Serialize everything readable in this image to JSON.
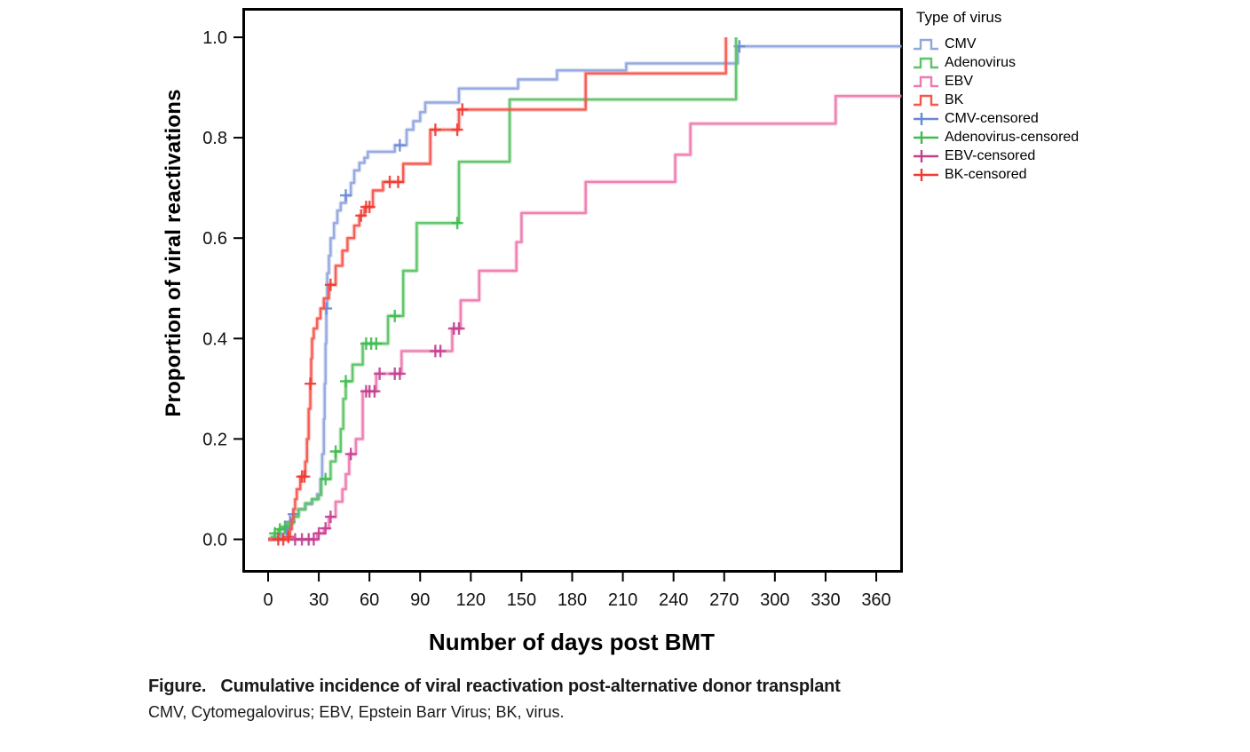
{
  "figure": {
    "y_axis_title": "Proportion of viral reactivations",
    "x_axis_title": "Number of days post BMT",
    "caption_line1": "Figure.   Cumulative incidence of viral reactivation post-alternative donor transplant",
    "caption_line2": "CMV, Cytomegalovirus; EBV, Epstein Barr Virus; BK, virus."
  },
  "legend": {
    "title": "Type of virus",
    "items": [
      {
        "label": "CMV",
        "type": "line",
        "color": "#91a7de"
      },
      {
        "label": "Adenovirus",
        "type": "line",
        "color": "#5dc466"
      },
      {
        "label": "EBV",
        "type": "line",
        "color": "#ed7bb0"
      },
      {
        "label": "BK",
        "type": "line",
        "color": "#f4574e"
      },
      {
        "label": "CMV-censored",
        "type": "censored",
        "color": "#6887d6"
      },
      {
        "label": "Adenovirus-censored",
        "type": "censored",
        "color": "#3fbb4e"
      },
      {
        "label": "EBV-censored",
        "type": "censored",
        "color": "#c13e90"
      },
      {
        "label": "BK-censored",
        "type": "censored",
        "color": "#ee3a32"
      }
    ]
  },
  "chart_data": {
    "type": "line",
    "subtype": "kaplan-meier-cumulative-incidence-steps",
    "title": "Cumulative incidence of viral reactivation post-alternative donor transplant",
    "xlabel": "Number of days post BMT",
    "ylabel": "Proportion of viral reactivations",
    "xlim": [
      -15,
      375
    ],
    "ylim": [
      -0.06,
      1.06
    ],
    "x_ticks": [
      0,
      30,
      60,
      90,
      120,
      150,
      180,
      210,
      240,
      270,
      300,
      330,
      360
    ],
    "y_ticks": [
      0.0,
      0.2,
      0.4,
      0.6,
      0.8,
      1.0
    ],
    "grid": false,
    "legend_position": "right",
    "frame_color": "#000000",
    "series": [
      {
        "name": "CMV",
        "color": "#91a7de",
        "censor_color": "#6887d6",
        "points": [
          [
            0,
            0
          ],
          [
            3,
            0.005
          ],
          [
            8,
            0.012
          ],
          [
            11,
            0.02
          ],
          [
            13,
            0.035
          ],
          [
            15,
            0.05
          ],
          [
            18,
            0.06
          ],
          [
            22,
            0.07
          ],
          [
            26,
            0.08
          ],
          [
            29,
            0.09
          ],
          [
            31,
            0.12
          ],
          [
            32,
            0.17
          ],
          [
            33,
            0.24
          ],
          [
            33.5,
            0.31
          ],
          [
            34,
            0.39
          ],
          [
            34.5,
            0.46
          ],
          [
            35,
            0.53
          ],
          [
            36,
            0.565
          ],
          [
            37,
            0.6
          ],
          [
            39,
            0.63
          ],
          [
            41,
            0.655
          ],
          [
            43,
            0.67
          ],
          [
            46,
            0.685
          ],
          [
            49,
            0.71
          ],
          [
            51,
            0.735
          ],
          [
            54,
            0.75
          ],
          [
            57,
            0.76
          ],
          [
            59,
            0.772
          ],
          [
            75,
            0.785
          ],
          [
            82,
            0.816
          ],
          [
            86,
            0.833
          ],
          [
            90,
            0.851
          ],
          [
            93,
            0.87
          ],
          [
            113,
            0.898
          ],
          [
            148,
            0.916
          ],
          [
            171,
            0.934
          ],
          [
            212,
            0.948
          ],
          [
            278,
            0.982
          ],
          [
            375,
            0.982
          ]
        ],
        "censored": [
          [
            11,
            0.02
          ],
          [
            13,
            0.035
          ],
          [
            15,
            0.05
          ],
          [
            34.5,
            0.46
          ],
          [
            46,
            0.685
          ],
          [
            78,
            0.785
          ],
          [
            279,
            0.982
          ]
        ]
      },
      {
        "name": "Adenovirus",
        "color": "#5dc466",
        "censor_color": "#3fbb4e",
        "points": [
          [
            0,
            0
          ],
          [
            2,
            0.005
          ],
          [
            4,
            0.012
          ],
          [
            6,
            0.02
          ],
          [
            9,
            0.025
          ],
          [
            12,
            0.032
          ],
          [
            15,
            0.045
          ],
          [
            18,
            0.06
          ],
          [
            22,
            0.072
          ],
          [
            26,
            0.08
          ],
          [
            30,
            0.088
          ],
          [
            31.5,
            0.12
          ],
          [
            37,
            0.155
          ],
          [
            40,
            0.175
          ],
          [
            43,
            0.22
          ],
          [
            44.5,
            0.28
          ],
          [
            46,
            0.315
          ],
          [
            50,
            0.348
          ],
          [
            56,
            0.39
          ],
          [
            71,
            0.445
          ],
          [
            80,
            0.535
          ],
          [
            88,
            0.63
          ],
          [
            113,
            0.752
          ],
          [
            143,
            0.876
          ],
          [
            276,
            0.876
          ],
          [
            277,
            1.0
          ]
        ],
        "censored": [
          [
            4,
            0.012
          ],
          [
            7,
            0.02
          ],
          [
            10,
            0.025
          ],
          [
            34,
            0.12
          ],
          [
            40,
            0.175
          ],
          [
            46,
            0.315
          ],
          [
            58,
            0.39
          ],
          [
            61,
            0.39
          ],
          [
            64,
            0.39
          ],
          [
            75,
            0.445
          ],
          [
            112,
            0.63
          ]
        ]
      },
      {
        "name": "EBV",
        "color": "#ed7bb0",
        "censor_color": "#c13e90",
        "points": [
          [
            0,
            0
          ],
          [
            28,
            0
          ],
          [
            29,
            0.012
          ],
          [
            33,
            0.022
          ],
          [
            36,
            0.045
          ],
          [
            40,
            0.075
          ],
          [
            44,
            0.1
          ],
          [
            46,
            0.13
          ],
          [
            48,
            0.17
          ],
          [
            52,
            0.2
          ],
          [
            56,
            0.295
          ],
          [
            64,
            0.33
          ],
          [
            79,
            0.375
          ],
          [
            109,
            0.42
          ],
          [
            114,
            0.476
          ],
          [
            125,
            0.535
          ],
          [
            147,
            0.592
          ],
          [
            150,
            0.65
          ],
          [
            188,
            0.712
          ],
          [
            241,
            0.766
          ],
          [
            250,
            0.828
          ],
          [
            336,
            0.883
          ],
          [
            375,
            0.883
          ]
        ],
        "censored": [
          [
            16,
            0
          ],
          [
            20,
            0
          ],
          [
            24,
            0
          ],
          [
            27,
            0
          ],
          [
            30,
            0.012
          ],
          [
            34,
            0.022
          ],
          [
            37,
            0.045
          ],
          [
            49,
            0.17
          ],
          [
            58,
            0.295
          ],
          [
            60,
            0.295
          ],
          [
            63,
            0.295
          ],
          [
            66,
            0.33
          ],
          [
            75,
            0.33
          ],
          [
            78,
            0.33
          ],
          [
            99,
            0.375
          ],
          [
            102,
            0.375
          ],
          [
            110,
            0.42
          ],
          [
            113,
            0.42
          ]
        ]
      },
      {
        "name": "BK",
        "color": "#f4574e",
        "censor_color": "#ee3a32",
        "points": [
          [
            0,
            0
          ],
          [
            5,
            0
          ],
          [
            12,
            0.005
          ],
          [
            13,
            0.02
          ],
          [
            14,
            0.04
          ],
          [
            15,
            0.06
          ],
          [
            16,
            0.08
          ],
          [
            17,
            0.1
          ],
          [
            19,
            0.125
          ],
          [
            22,
            0.155
          ],
          [
            23,
            0.2
          ],
          [
            24,
            0.26
          ],
          [
            25,
            0.31
          ],
          [
            25.5,
            0.36
          ],
          [
            26,
            0.4
          ],
          [
            27,
            0.42
          ],
          [
            29,
            0.44
          ],
          [
            31,
            0.46
          ],
          [
            33,
            0.48
          ],
          [
            36,
            0.507
          ],
          [
            40,
            0.545
          ],
          [
            44,
            0.575
          ],
          [
            47,
            0.6
          ],
          [
            51,
            0.625
          ],
          [
            54,
            0.645
          ],
          [
            57,
            0.662
          ],
          [
            62,
            0.695
          ],
          [
            68,
            0.712
          ],
          [
            80,
            0.748
          ],
          [
            96,
            0.816
          ],
          [
            113,
            0.856
          ],
          [
            188,
            0.928
          ],
          [
            271,
            1.0
          ]
        ],
        "censored": [
          [
            6,
            0
          ],
          [
            9,
            0
          ],
          [
            12,
            0.005
          ],
          [
            20,
            0.125
          ],
          [
            21.5,
            0.125
          ],
          [
            25,
            0.31
          ],
          [
            37,
            0.507
          ],
          [
            55,
            0.645
          ],
          [
            58,
            0.662
          ],
          [
            60,
            0.662
          ],
          [
            72,
            0.712
          ],
          [
            77,
            0.712
          ],
          [
            99,
            0.816
          ],
          [
            112,
            0.816
          ],
          [
            115,
            0.856
          ]
        ]
      }
    ]
  }
}
